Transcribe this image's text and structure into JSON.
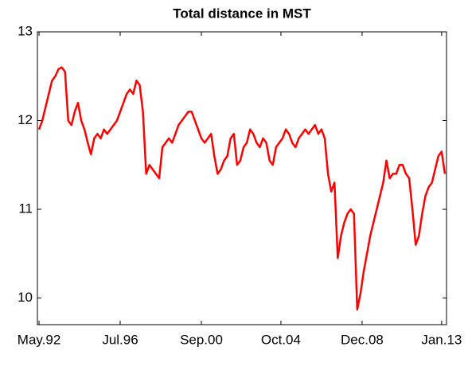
{
  "chart_data": {
    "type": "line",
    "title": "Total distance in MST",
    "x": [
      "1992-05",
      "1992-07",
      "1992-09",
      "1992-11",
      "1993-01",
      "1993-03",
      "1993-05",
      "1993-07",
      "1993-09",
      "1993-11",
      "1994-01",
      "1994-03",
      "1994-05",
      "1994-07",
      "1994-09",
      "1994-11",
      "1995-01",
      "1995-03",
      "1995-05",
      "1995-07",
      "1995-09",
      "1995-11",
      "1996-01",
      "1996-03",
      "1996-05",
      "1996-07",
      "1996-09",
      "1996-11",
      "1997-01",
      "1997-03",
      "1997-05",
      "1997-07",
      "1997-09",
      "1997-11",
      "1998-01",
      "1998-03",
      "1998-05",
      "1998-07",
      "1998-09",
      "1998-11",
      "1999-01",
      "1999-03",
      "1999-05",
      "1999-07",
      "1999-09",
      "1999-11",
      "2000-01",
      "2000-03",
      "2000-05",
      "2000-07",
      "2000-09",
      "2000-11",
      "2001-01",
      "2001-03",
      "2001-05",
      "2001-07",
      "2001-09",
      "2001-11",
      "2002-01",
      "2002-03",
      "2002-05",
      "2002-07",
      "2002-09",
      "2002-11",
      "2003-01",
      "2003-03",
      "2003-05",
      "2003-07",
      "2003-09",
      "2003-11",
      "2004-01",
      "2004-03",
      "2004-05",
      "2004-07",
      "2004-09",
      "2004-11",
      "2005-01",
      "2005-03",
      "2005-05",
      "2005-07",
      "2005-09",
      "2005-11",
      "2006-01",
      "2006-03",
      "2006-05",
      "2006-07",
      "2006-09",
      "2006-11",
      "2007-01",
      "2007-03",
      "2007-05",
      "2007-07",
      "2007-09",
      "2007-11",
      "2008-01",
      "2008-03",
      "2008-05",
      "2008-07",
      "2008-09",
      "2008-11",
      "2009-01",
      "2009-03",
      "2009-05",
      "2009-07",
      "2009-09",
      "2009-11",
      "2010-01",
      "2010-03",
      "2010-05",
      "2010-07",
      "2010-09",
      "2010-11",
      "2011-01",
      "2011-03",
      "2011-05",
      "2011-07",
      "2011-09",
      "2011-11",
      "2012-01",
      "2012-03",
      "2012-05",
      "2012-07",
      "2012-09",
      "2012-11",
      "2013-01",
      "2013-03"
    ],
    "series": [
      {
        "color": "#ff0000",
        "values": [
          11.9,
          12.0,
          12.15,
          12.3,
          12.45,
          12.5,
          12.58,
          12.6,
          12.55,
          12.0,
          11.95,
          12.1,
          12.2,
          12.0,
          11.9,
          11.75,
          11.62,
          11.8,
          11.85,
          11.8,
          11.9,
          11.85,
          11.9,
          11.95,
          12.0,
          12.1,
          12.2,
          12.3,
          12.35,
          12.3,
          12.45,
          12.4,
          12.1,
          11.4,
          11.5,
          11.45,
          11.4,
          11.35,
          11.7,
          11.75,
          11.8,
          11.75,
          11.85,
          11.95,
          12.0,
          12.05,
          12.1,
          12.1,
          12.0,
          11.9,
          11.8,
          11.75,
          11.8,
          11.85,
          11.6,
          11.4,
          11.45,
          11.55,
          11.6,
          11.8,
          11.85,
          11.5,
          11.55,
          11.7,
          11.75,
          11.9,
          11.85,
          11.75,
          11.7,
          11.8,
          11.75,
          11.55,
          11.5,
          11.7,
          11.75,
          11.8,
          11.9,
          11.85,
          11.75,
          11.7,
          11.8,
          11.85,
          11.9,
          11.85,
          11.9,
          11.95,
          11.85,
          11.9,
          11.8,
          11.4,
          11.2,
          11.3,
          10.45,
          10.7,
          10.85,
          10.95,
          11.0,
          10.95,
          9.87,
          10.05,
          10.3,
          10.5,
          10.7,
          10.85,
          11.0,
          11.15,
          11.3,
          11.55,
          11.35,
          11.4,
          11.4,
          11.5,
          11.5,
          11.4,
          11.35,
          11.0,
          10.6,
          10.7,
          10.95,
          11.15,
          11.25,
          11.3,
          11.45,
          11.6,
          11.65,
          11.4
        ]
      }
    ],
    "xlim": [
      "1992-04",
      "2013-04"
    ],
    "xticks": [
      {
        "value": "1992-05",
        "label": "May.92"
      },
      {
        "value": "1996-07",
        "label": "Jul.96"
      },
      {
        "value": "2000-09",
        "label": "Sep.00"
      },
      {
        "value": "2004-10",
        "label": "Oct.04"
      },
      {
        "value": "2008-12",
        "label": "Dec.08"
      },
      {
        "value": "2013-01",
        "label": "Jan.13"
      }
    ],
    "ylim": [
      9.7,
      13
    ],
    "yticks": [
      10,
      11,
      12,
      13
    ],
    "grid": false
  }
}
